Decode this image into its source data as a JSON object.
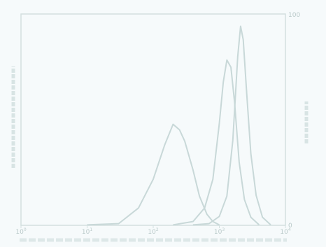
{
  "chart_data": {
    "type": "line",
    "title": "",
    "xlabel": "",
    "ylabel": "",
    "x_scale": "log",
    "xlim": [
      1,
      10000
    ],
    "ylim": [
      0,
      100
    ],
    "x_tick_labels": [
      "10",
      "10",
      "10",
      "10",
      "10"
    ],
    "x_tick_exponents": [
      "0",
      "1",
      "2",
      "3",
      "4"
    ],
    "right_axis_tick_labels": [
      "100",
      "0"
    ],
    "grid": false,
    "legend": "none",
    "colors": {
      "background": "#f6fafb",
      "frame": "#d3e0e0",
      "curve": "#c8d8d8",
      "text": "#b9c9c9"
    },
    "series": [
      {
        "x": [
          10,
          30,
          60,
          100,
          150,
          200,
          250,
          300,
          400,
          500,
          650,
          800,
          1000
        ],
        "y": [
          0,
          1,
          8,
          22,
          38,
          48,
          45,
          40,
          26,
          14,
          5,
          2,
          0
        ]
      },
      {
        "x": [
          200,
          400,
          600,
          800,
          1000,
          1150,
          1300,
          1500,
          1700,
          2000,
          2400,
          3000,
          4000
        ],
        "y": [
          0,
          2,
          8,
          22,
          48,
          68,
          78,
          75,
          58,
          30,
          12,
          4,
          0
        ]
      },
      {
        "x": [
          400,
          700,
          1000,
          1300,
          1600,
          1900,
          2100,
          2300,
          2600,
          3000,
          3600,
          4500,
          6000
        ],
        "y": [
          0,
          1,
          4,
          14,
          40,
          80,
          94,
          88,
          62,
          34,
          14,
          4,
          0
        ]
      }
    ]
  }
}
